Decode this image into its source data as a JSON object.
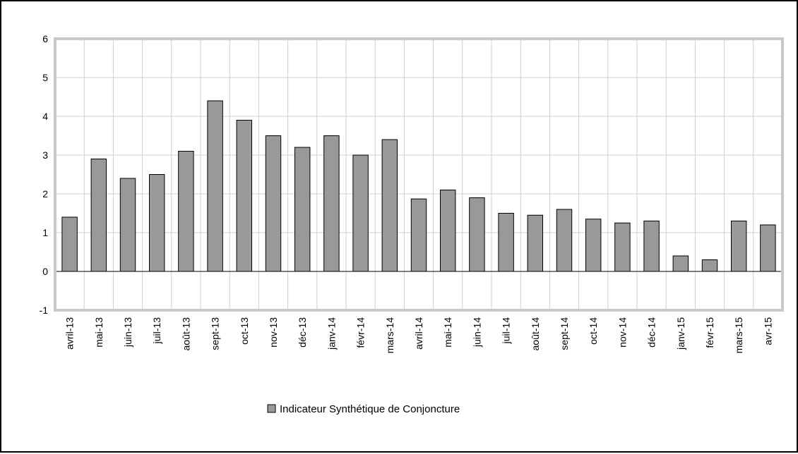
{
  "chart_data": {
    "type": "bar",
    "categories": [
      "avril-13",
      "mai-13",
      "juin-13",
      "juil-13",
      "août-13",
      "sept-13",
      "oct-13",
      "nov-13",
      "déc-13",
      "janv-14",
      "févr-14",
      "mars-14",
      "avril-14",
      "mai-14",
      "juin-14",
      "juil-14",
      "août-14",
      "sept-14",
      "oct-14",
      "nov-14",
      "déc-14",
      "janv-15",
      "févr-15",
      "mars-15",
      "avr-15"
    ],
    "series": [
      {
        "name": "Indicateur Synthétique de Conjoncture",
        "values": [
          1.4,
          2.9,
          2.4,
          2.5,
          3.1,
          4.4,
          3.9,
          3.5,
          3.2,
          3.5,
          3.0,
          3.4,
          1.87,
          2.1,
          1.9,
          1.5,
          1.45,
          1.6,
          1.35,
          1.25,
          1.3,
          0.4,
          0.3,
          1.3,
          1.2
        ]
      }
    ],
    "yticks": [
      "6",
      "5",
      "4",
      "3",
      "2",
      "1",
      "0",
      "-1"
    ],
    "ylim": [
      -1,
      6
    ],
    "grid": true,
    "legend_position": "bottom",
    "colors": {
      "bar_fill": "#999999",
      "bar_stroke": "#000000",
      "grid": "#cfcfcf",
      "plot_border": "#c8c8c8",
      "zero_line": "#000000"
    }
  }
}
